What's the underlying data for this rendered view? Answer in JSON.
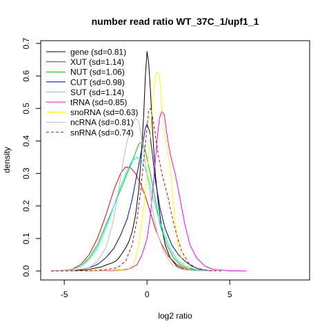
{
  "chart_data": {
    "type": "line",
    "title": "number read ratio WT_37C_1/upf1_1",
    "xlabel": "log2 ratio",
    "ylabel": "density",
    "xlim": [
      -5.8,
      9.2
    ],
    "ylim": [
      0,
      0.7
    ],
    "xticks": [
      -5,
      0,
      5
    ],
    "yticks": [
      0.0,
      0.1,
      0.2,
      0.3,
      0.4,
      0.5,
      0.6,
      0.7
    ],
    "legend_position": "top-left",
    "series": [
      {
        "name": "gene (sd=0.81)",
        "color": "#000000",
        "dash": false,
        "points": [
          [
            -5.8,
            0
          ],
          [
            -4.5,
            0.001
          ],
          [
            -3.5,
            0.005
          ],
          [
            -2.8,
            0.012
          ],
          [
            -2.4,
            0.02
          ],
          [
            -2.1,
            0.025
          ],
          [
            -1.9,
            0.03
          ],
          [
            -1.7,
            0.04
          ],
          [
            -1.5,
            0.055
          ],
          [
            -1.3,
            0.07
          ],
          [
            -1.1,
            0.09
          ],
          [
            -0.9,
            0.12
          ],
          [
            -0.7,
            0.17
          ],
          [
            -0.5,
            0.25
          ],
          [
            -0.35,
            0.35
          ],
          [
            -0.2,
            0.48
          ],
          [
            -0.1,
            0.6
          ],
          [
            0,
            0.675
          ],
          [
            0.1,
            0.64
          ],
          [
            0.2,
            0.56
          ],
          [
            0.35,
            0.42
          ],
          [
            0.5,
            0.3
          ],
          [
            0.7,
            0.2
          ],
          [
            0.9,
            0.13
          ],
          [
            1.1,
            0.08
          ],
          [
            1.4,
            0.04
          ],
          [
            1.8,
            0.015
          ],
          [
            2.3,
            0.004
          ],
          [
            3,
            0.001
          ],
          [
            4,
            0
          ]
        ]
      },
      {
        "name": "XUT (sd=1.14)",
        "color": "#ff0000",
        "dash": false,
        "points": [
          [
            -5.8,
            0
          ],
          [
            -5,
            0.002
          ],
          [
            -4.5,
            0.006
          ],
          [
            -4,
            0.02
          ],
          [
            -3.5,
            0.05
          ],
          [
            -3,
            0.1
          ],
          [
            -2.5,
            0.17
          ],
          [
            -2,
            0.25
          ],
          [
            -1.6,
            0.3
          ],
          [
            -1.3,
            0.32
          ],
          [
            -1,
            0.318
          ],
          [
            -0.7,
            0.3
          ],
          [
            -0.4,
            0.27
          ],
          [
            -0.1,
            0.23
          ],
          [
            0.2,
            0.18
          ],
          [
            0.5,
            0.13
          ],
          [
            0.9,
            0.08
          ],
          [
            1.3,
            0.045
          ],
          [
            1.8,
            0.02
          ],
          [
            2.3,
            0.008
          ],
          [
            3,
            0.002
          ],
          [
            4,
            0
          ]
        ]
      },
      {
        "name": "NUT (sd=1.06)",
        "color": "#00cc00",
        "dash": false,
        "points": [
          [
            -5.8,
            0
          ],
          [
            -5,
            0.002
          ],
          [
            -4.5,
            0.005
          ],
          [
            -4,
            0.015
          ],
          [
            -3.5,
            0.04
          ],
          [
            -3,
            0.08
          ],
          [
            -2.5,
            0.14
          ],
          [
            -2,
            0.2
          ],
          [
            -1.6,
            0.25
          ],
          [
            -1.2,
            0.3
          ],
          [
            -0.8,
            0.35
          ],
          [
            -0.5,
            0.39
          ],
          [
            -0.3,
            0.398
          ],
          [
            -0.1,
            0.37
          ],
          [
            0.2,
            0.3
          ],
          [
            0.5,
            0.22
          ],
          [
            0.8,
            0.14
          ],
          [
            1.2,
            0.08
          ],
          [
            1.6,
            0.04
          ],
          [
            2,
            0.02
          ],
          [
            2.5,
            0.008
          ],
          [
            3.2,
            0.002
          ],
          [
            4,
            0
          ]
        ]
      },
      {
        "name": "CUT (sd=0.98)",
        "color": "#0000cc",
        "dash": false,
        "points": [
          [
            -5.8,
            0
          ],
          [
            -4.5,
            0.002
          ],
          [
            -3.5,
            0.01
          ],
          [
            -3,
            0.02
          ],
          [
            -2.5,
            0.04
          ],
          [
            -2,
            0.07
          ],
          [
            -1.6,
            0.11
          ],
          [
            -1.2,
            0.16
          ],
          [
            -0.9,
            0.22
          ],
          [
            -0.6,
            0.3
          ],
          [
            -0.3,
            0.38
          ],
          [
            -0.1,
            0.44
          ],
          [
            0,
            0.452
          ],
          [
            0.15,
            0.43
          ],
          [
            0.3,
            0.37
          ],
          [
            0.5,
            0.28
          ],
          [
            0.8,
            0.19
          ],
          [
            1.1,
            0.13
          ],
          [
            1.5,
            0.08
          ],
          [
            1.9,
            0.05
          ],
          [
            2.3,
            0.03
          ],
          [
            2.7,
            0.015
          ],
          [
            3.2,
            0.005
          ],
          [
            4,
            0
          ]
        ]
      },
      {
        "name": "SUT (sd=1.14)",
        "color": "#00ffff",
        "dash": false,
        "points": [
          [
            -5.8,
            0
          ],
          [
            -5,
            0.002
          ],
          [
            -4.5,
            0.005
          ],
          [
            -4,
            0.015
          ],
          [
            -3.5,
            0.035
          ],
          [
            -3,
            0.07
          ],
          [
            -2.5,
            0.13
          ],
          [
            -2,
            0.2
          ],
          [
            -1.6,
            0.26
          ],
          [
            -1.2,
            0.31
          ],
          [
            -0.9,
            0.34
          ],
          [
            -0.6,
            0.35
          ],
          [
            -0.3,
            0.34
          ],
          [
            0,
            0.3
          ],
          [
            0.3,
            0.24
          ],
          [
            0.6,
            0.18
          ],
          [
            1,
            0.12
          ],
          [
            1.4,
            0.07
          ],
          [
            1.8,
            0.035
          ],
          [
            2.3,
            0.015
          ],
          [
            3,
            0.004
          ],
          [
            4,
            0
          ]
        ]
      },
      {
        "name": "tRNA (sd=0.85)",
        "color": "#ff00ff",
        "dash": false,
        "points": [
          [
            -5.8,
            0
          ],
          [
            -4,
            0
          ],
          [
            -2.5,
            0.001
          ],
          [
            -1.5,
            0.003
          ],
          [
            -1,
            0.008
          ],
          [
            -0.6,
            0.02
          ],
          [
            -0.3,
            0.05
          ],
          [
            0,
            0.1
          ],
          [
            0.2,
            0.17
          ],
          [
            0.4,
            0.28
          ],
          [
            0.6,
            0.4
          ],
          [
            0.75,
            0.47
          ],
          [
            0.9,
            0.492
          ],
          [
            1.05,
            0.48
          ],
          [
            1.2,
            0.42
          ],
          [
            1.4,
            0.36
          ],
          [
            1.7,
            0.3
          ],
          [
            2,
            0.22
          ],
          [
            2.3,
            0.14
          ],
          [
            2.6,
            0.08
          ],
          [
            3,
            0.04
          ],
          [
            3.5,
            0.015
          ],
          [
            4,
            0.005
          ],
          [
            5,
            0.001
          ],
          [
            6,
            0
          ]
        ]
      },
      {
        "name": "snoRNA (sd=0.63)",
        "color": "#ffff00",
        "dash": false,
        "points": [
          [
            -5.8,
            0
          ],
          [
            -2,
            0
          ],
          [
            -1.2,
            0.003
          ],
          [
            -0.8,
            0.02
          ],
          [
            -0.5,
            0.08
          ],
          [
            -0.2,
            0.2
          ],
          [
            0.1,
            0.35
          ],
          [
            0.3,
            0.5
          ],
          [
            0.5,
            0.6
          ],
          [
            0.6,
            0.613
          ],
          [
            0.75,
            0.6
          ],
          [
            0.9,
            0.5
          ],
          [
            1.05,
            0.42
          ],
          [
            1.2,
            0.38
          ],
          [
            1.35,
            0.34
          ],
          [
            1.5,
            0.26
          ],
          [
            1.7,
            0.15
          ],
          [
            1.9,
            0.07
          ],
          [
            2.2,
            0.02
          ],
          [
            2.6,
            0.004
          ],
          [
            3.2,
            0
          ],
          [
            4,
            0
          ]
        ]
      },
      {
        "name": "ncRNA (sd=0.81)",
        "color": "#bbbbbb",
        "dash": false,
        "points": [
          [
            -5.8,
            0
          ],
          [
            -4.5,
            0.002
          ],
          [
            -3.5,
            0.01
          ],
          [
            -3,
            0.03
          ],
          [
            -2.5,
            0.07
          ],
          [
            -2.1,
            0.14
          ],
          [
            -1.8,
            0.22
          ],
          [
            -1.5,
            0.32
          ],
          [
            -1.2,
            0.4
          ],
          [
            -0.9,
            0.45
          ],
          [
            -0.7,
            0.47
          ],
          [
            -0.5,
            0.46
          ],
          [
            -0.3,
            0.4
          ],
          [
            0,
            0.3
          ],
          [
            0.3,
            0.2
          ],
          [
            0.6,
            0.12
          ],
          [
            1,
            0.06
          ],
          [
            1.5,
            0.02
          ],
          [
            2,
            0.006
          ],
          [
            3,
            0.001
          ],
          [
            4,
            0
          ]
        ]
      },
      {
        "name": "snRNA (sd=0.74)",
        "color": "#cc0000",
        "dash": true,
        "points": [
          [
            -5.8,
            0
          ],
          [
            -3.5,
            0.001
          ],
          [
            -2.5,
            0.004
          ],
          [
            -1.8,
            0.01
          ],
          [
            -1.3,
            0.03
          ],
          [
            -0.9,
            0.08
          ],
          [
            -0.6,
            0.16
          ],
          [
            -0.4,
            0.24
          ],
          [
            -0.2,
            0.34
          ],
          [
            0,
            0.44
          ],
          [
            0.1,
            0.495
          ],
          [
            0.2,
            0.5
          ],
          [
            0.35,
            0.47
          ],
          [
            0.5,
            0.42
          ],
          [
            0.7,
            0.35
          ],
          [
            0.9,
            0.3
          ],
          [
            1.1,
            0.26
          ],
          [
            1.3,
            0.22
          ],
          [
            1.5,
            0.17
          ],
          [
            1.8,
            0.11
          ],
          [
            2.1,
            0.06
          ],
          [
            2.5,
            0.025
          ],
          [
            3,
            0.008
          ],
          [
            3.7,
            0.002
          ],
          [
            4.5,
            0
          ]
        ]
      }
    ]
  }
}
